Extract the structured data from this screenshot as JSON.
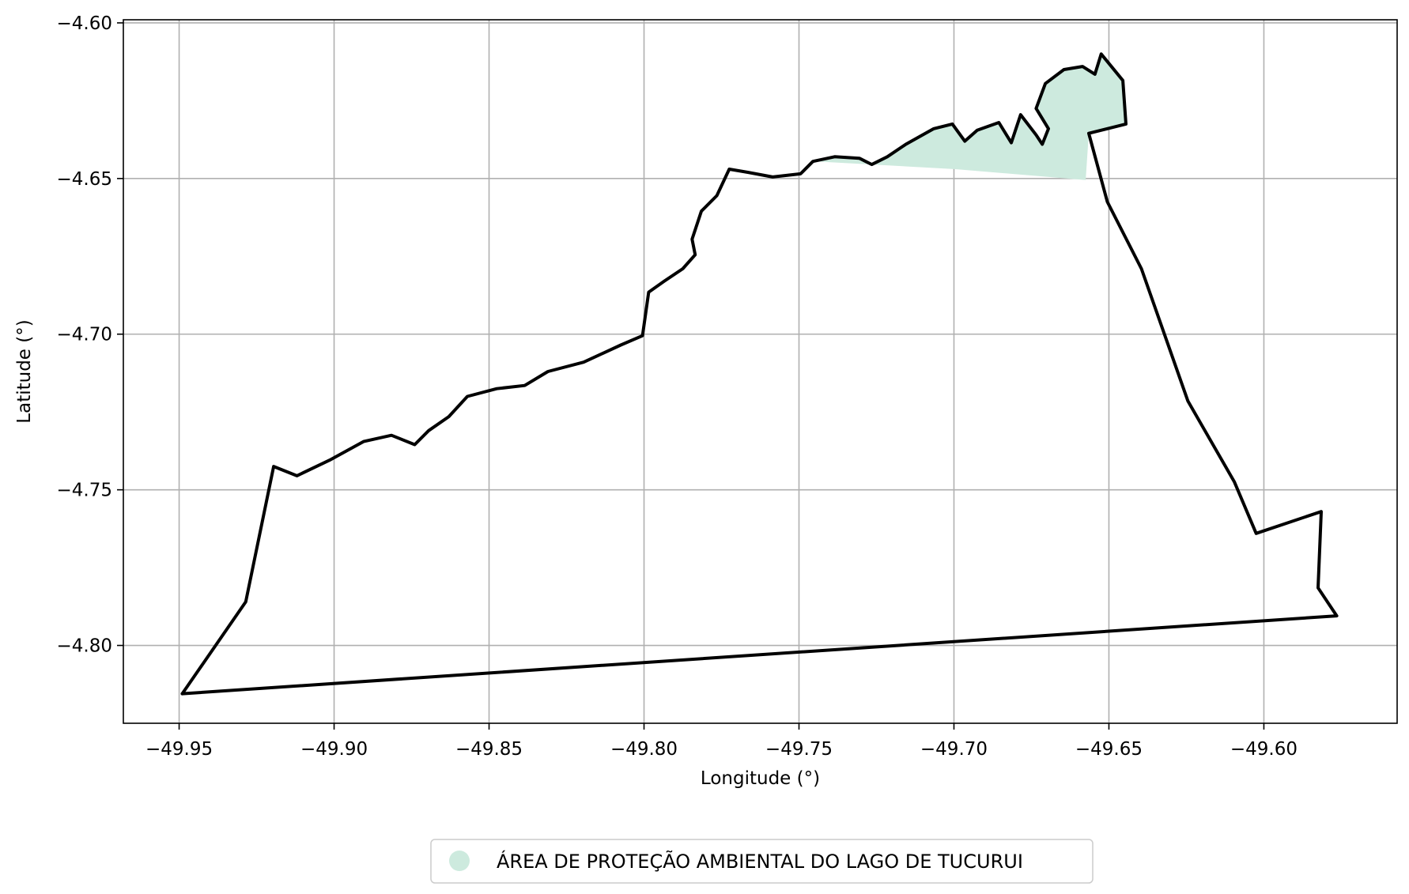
{
  "chart_data": {
    "type": "map",
    "xlabel": "Longitude (°)",
    "ylabel": "Latitude (°)",
    "xlim": [
      -49.968,
      -49.557
    ],
    "ylim": [
      -4.825,
      -4.599
    ],
    "x_ticks": [
      -49.95,
      -49.9,
      -49.85,
      -49.8,
      -49.75,
      -49.7,
      -49.65,
      -49.6
    ],
    "x_tick_labels": [
      "−49.95",
      "−49.90",
      "−49.85",
      "−49.80",
      "−49.75",
      "−49.70",
      "−49.65",
      "−49.60"
    ],
    "y_ticks": [
      -4.6,
      -4.65,
      -4.7,
      -4.75,
      -4.8
    ],
    "y_tick_labels": [
      "−4.60",
      "−4.65",
      "−4.70",
      "−4.75",
      "−4.80"
    ],
    "grid": true,
    "legend": {
      "placement": "bottom-center",
      "entries": [
        {
          "label": "ÁREA DE PROTEÇÃO AMBIENTAL DO LAGO DE TUCURUI",
          "color": "#cdeade"
        }
      ]
    },
    "boundary": {
      "color": "#000000",
      "coords": [
        [
          -49.949,
          -4.8155
        ],
        [
          -49.9285,
          -4.786
        ],
        [
          -49.9195,
          -4.7425
        ],
        [
          -49.912,
          -4.7455
        ],
        [
          -49.9015,
          -4.7405
        ],
        [
          -49.8905,
          -4.7345
        ],
        [
          -49.8815,
          -4.7325
        ],
        [
          -49.874,
          -4.7355
        ],
        [
          -49.8695,
          -4.731
        ],
        [
          -49.863,
          -4.7265
        ],
        [
          -49.857,
          -4.72
        ],
        [
          -49.8475,
          -4.7175
        ],
        [
          -49.8385,
          -4.7165
        ],
        [
          -49.831,
          -4.712
        ],
        [
          -49.8195,
          -4.709
        ],
        [
          -49.8075,
          -4.7035
        ],
        [
          -49.8005,
          -4.7005
        ],
        [
          -49.7985,
          -4.6865
        ],
        [
          -49.7935,
          -4.683
        ],
        [
          -49.7875,
          -4.679
        ],
        [
          -49.7835,
          -4.6745
        ],
        [
          -49.7845,
          -4.6695
        ],
        [
          -49.7815,
          -4.6605
        ],
        [
          -49.7765,
          -4.6555
        ],
        [
          -49.7725,
          -4.647
        ],
        [
          -49.7665,
          -4.648
        ],
        [
          -49.7585,
          -4.6495
        ],
        [
          -49.7495,
          -4.6485
        ],
        [
          -49.7455,
          -4.6445
        ],
        [
          -49.7385,
          -4.643
        ],
        [
          -49.7305,
          -4.6435
        ],
        [
          -49.7265,
          -4.6455
        ],
        [
          -49.7215,
          -4.643
        ],
        [
          -49.7155,
          -4.639
        ],
        [
          -49.7065,
          -4.634
        ],
        [
          -49.7005,
          -4.6325
        ],
        [
          -49.6965,
          -4.638
        ],
        [
          -49.6925,
          -4.6345
        ],
        [
          -49.6855,
          -4.632
        ],
        [
          -49.6815,
          -4.6385
        ],
        [
          -49.6785,
          -4.6295
        ],
        [
          -49.6735,
          -4.636
        ],
        [
          -49.6715,
          -4.639
        ],
        [
          -49.6695,
          -4.634
        ],
        [
          -49.6735,
          -4.6275
        ],
        [
          -49.6705,
          -4.6195
        ],
        [
          -49.6645,
          -4.615
        ],
        [
          -49.6585,
          -4.614
        ],
        [
          -49.6545,
          -4.6165
        ],
        [
          -49.6525,
          -4.61
        ],
        [
          -49.6455,
          -4.6185
        ],
        [
          -49.6445,
          -4.6325
        ],
        [
          -49.6565,
          -4.6355
        ],
        [
          -49.6505,
          -4.6575
        ],
        [
          -49.6395,
          -4.679
        ],
        [
          -49.6245,
          -4.7215
        ],
        [
          -49.6095,
          -4.7475
        ],
        [
          -49.6025,
          -4.764
        ],
        [
          -49.5815,
          -4.757
        ],
        [
          -49.5825,
          -4.7815
        ],
        [
          -49.5765,
          -4.7905
        ],
        [
          -49.949,
          -4.8155
        ]
      ]
    },
    "fill": {
      "color": "#cdeade",
      "coords": [
        [
          -49.7445,
          -4.6445
        ],
        [
          -49.7385,
          -4.643
        ],
        [
          -49.7305,
          -4.6435
        ],
        [
          -49.7265,
          -4.6455
        ],
        [
          -49.7215,
          -4.643
        ],
        [
          -49.7155,
          -4.639
        ],
        [
          -49.7065,
          -4.634
        ],
        [
          -49.7005,
          -4.6325
        ],
        [
          -49.6965,
          -4.638
        ],
        [
          -49.6925,
          -4.6345
        ],
        [
          -49.6855,
          -4.632
        ],
        [
          -49.6815,
          -4.6385
        ],
        [
          -49.6785,
          -4.6295
        ],
        [
          -49.6735,
          -4.636
        ],
        [
          -49.6715,
          -4.639
        ],
        [
          -49.6695,
          -4.634
        ],
        [
          -49.6735,
          -4.6275
        ],
        [
          -49.6705,
          -4.6195
        ],
        [
          -49.6645,
          -4.615
        ],
        [
          -49.6585,
          -4.614
        ],
        [
          -49.6545,
          -4.6165
        ],
        [
          -49.6525,
          -4.61
        ],
        [
          -49.6455,
          -4.6185
        ],
        [
          -49.6445,
          -4.6325
        ],
        [
          -49.6565,
          -4.6355
        ],
        [
          -49.6575,
          -4.6505
        ],
        [
          -49.6995,
          -4.647
        ],
        [
          -49.7445,
          -4.6445
        ]
      ]
    }
  }
}
